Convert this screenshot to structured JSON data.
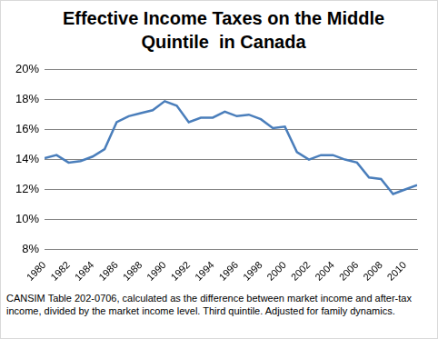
{
  "chart_data": {
    "type": "line",
    "title": "Effective Income Taxes on the Middle Quintile  in Canada",
    "caption": "CANSIM Table 202-0706, calculated as the difference between market income and after-tax income, divided by the market income level. Third quintile. Adjusted for family dynamics.",
    "categories": [
      "1980",
      null,
      "1982",
      null,
      "1984",
      null,
      "1986",
      null,
      "1988",
      null,
      "1990",
      null,
      "1992",
      null,
      "1994",
      null,
      "1996",
      null,
      "1998",
      null,
      "2000",
      null,
      "2002",
      null,
      "2004",
      null,
      "2006",
      null,
      "2008",
      null,
      "2010",
      null
    ],
    "values": [
      14.1,
      14.3,
      13.8,
      13.9,
      14.2,
      14.7,
      16.5,
      16.9,
      17.1,
      17.3,
      17.9,
      17.6,
      16.5,
      16.8,
      16.8,
      17.2,
      16.9,
      17.0,
      16.7,
      16.1,
      16.2,
      14.5,
      14.0,
      14.3,
      14.3,
      14.0,
      13.8,
      12.8,
      12.7,
      11.7,
      12.0,
      12.3
    ],
    "color": "#4a7ebb",
    "marker": "none",
    "ylim": [
      8,
      20
    ],
    "yticks": [
      {
        "value": 8,
        "label": "8%"
      },
      {
        "value": 10,
        "label": "10%"
      },
      {
        "value": 12,
        "label": "12%"
      },
      {
        "value": 14,
        "label": "14%"
      },
      {
        "value": 16,
        "label": "16%"
      },
      {
        "value": 18,
        "label": "18%"
      },
      {
        "value": 20,
        "label": "20%"
      }
    ],
    "grid": true
  }
}
